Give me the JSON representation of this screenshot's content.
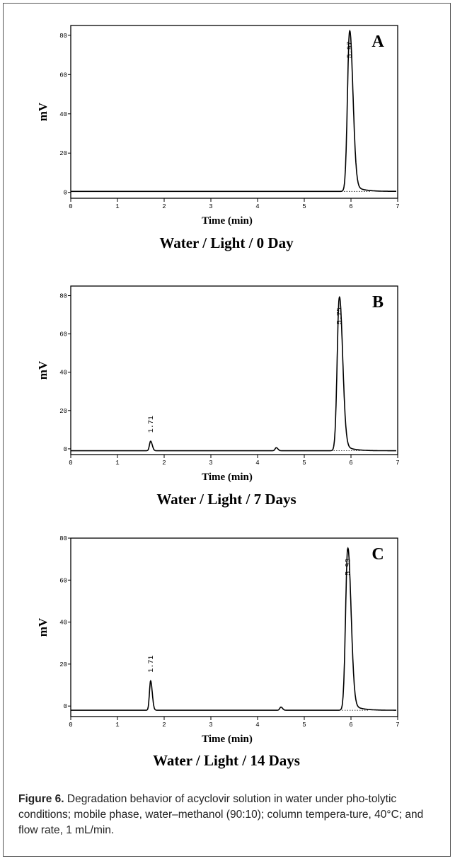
{
  "chart_data": [
    {
      "type": "line",
      "panel_letter": "A",
      "xlabel": "Time (min)",
      "ylabel": "mV",
      "panel_caption": "Water / Light / 0 Day",
      "xlim": [
        0,
        7
      ],
      "ylim": [
        -3,
        85
      ],
      "xticks": [
        "0",
        "1",
        "2",
        "3",
        "4",
        "5",
        "6",
        "7"
      ],
      "yticks": [
        "0",
        "20",
        "40",
        "60",
        "80"
      ],
      "ytick_values": [
        0,
        20,
        40,
        60,
        80
      ],
      "baseline": 0.5,
      "series": [
        {
          "peaks": [
            {
              "time": 5.97,
              "height": 82,
              "label": "5.97"
            }
          ]
        }
      ]
    },
    {
      "type": "line",
      "panel_letter": "B",
      "xlabel": "Time (min)",
      "ylabel": "mV",
      "panel_caption": "Water / Light / 7 Days",
      "xlim": [
        0,
        7
      ],
      "ylim": [
        -3,
        85
      ],
      "xticks": [
        "0",
        "1",
        "2",
        "3",
        "4",
        "5",
        "6",
        "7"
      ],
      "yticks": [
        "0",
        "20",
        "40",
        "60",
        "80"
      ],
      "ytick_values": [
        0,
        20,
        40,
        60,
        80
      ],
      "baseline": -1,
      "series": [
        {
          "peaks": [
            {
              "time": 1.71,
              "height": 4,
              "label": "1.71"
            },
            {
              "time": 4.4,
              "height": 0.6
            },
            {
              "time": 5.75,
              "height": 79,
              "label": "5.75"
            }
          ]
        }
      ]
    },
    {
      "type": "line",
      "panel_letter": "C",
      "xlabel": "Time (min)",
      "ylabel": "mV",
      "panel_caption": "Water / Light / 14 Days",
      "xlim": [
        0,
        7
      ],
      "ylim": [
        -5,
        80
      ],
      "xticks": [
        "0",
        "1",
        "2",
        "3",
        "4",
        "5",
        "6",
        "7"
      ],
      "yticks": [
        "0",
        "20",
        "40",
        "60",
        "80"
      ],
      "ytick_values": [
        0,
        20,
        40,
        60,
        80
      ],
      "baseline": -2,
      "series": [
        {
          "peaks": [
            {
              "time": 1.71,
              "height": 12,
              "label": "1.71"
            },
            {
              "time": 4.5,
              "height": -0.5
            },
            {
              "time": 5.93,
              "height": 75,
              "label": "5.93"
            }
          ]
        }
      ]
    }
  ],
  "figure_caption": {
    "lead": "Figure 6.",
    "text": " Degradation behavior of acyclovir solution in water under pho-tolytic conditions; mobile phase, water–methanol (90:10); column tempera-ture, 40°C; and flow rate, 1 mL/min."
  },
  "colors": {
    "ink": "#000000",
    "frame": "#555555"
  }
}
